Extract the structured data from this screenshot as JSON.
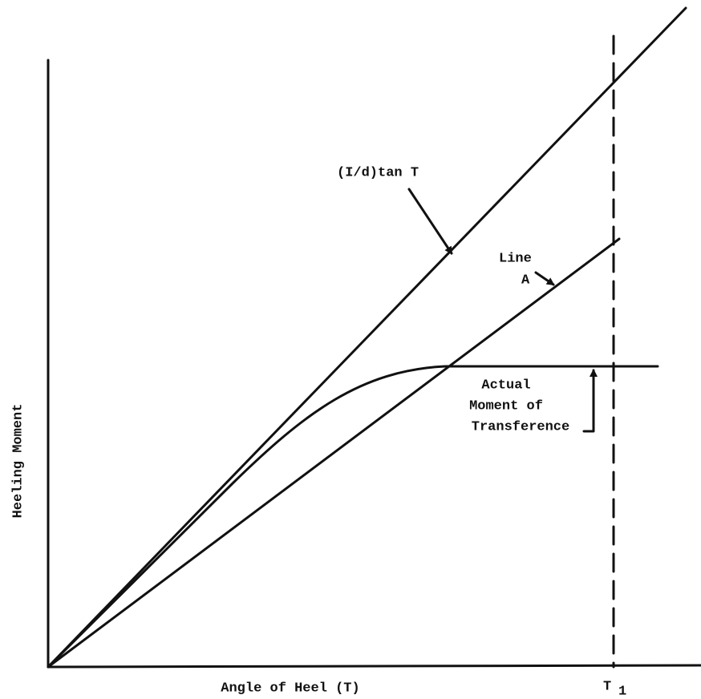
{
  "axes": {
    "y_label": "Heeling Moment",
    "x_label": "Angle of Heel (T)",
    "x_mark": {
      "symbol": "T",
      "subscript": "1"
    }
  },
  "curves": [
    {
      "label": [
        "(I/d)tan T"
      ]
    },
    {
      "label": [
        "Line",
        "A"
      ]
    },
    {
      "label": [
        "Actual",
        "Moment of",
        "Transference"
      ]
    }
  ]
}
